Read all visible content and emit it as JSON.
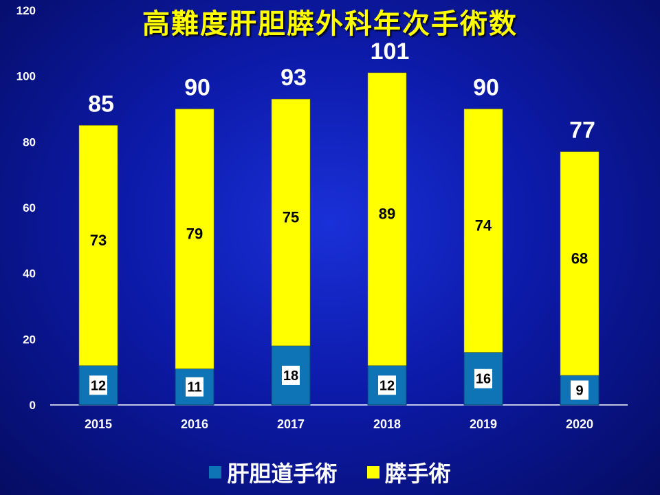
{
  "title": "高難度肝胆膵外科年次手術数",
  "colors": {
    "yellow": "#ffff00",
    "blue": "#0f74b5",
    "axis": "#ffffff"
  },
  "chart_data": {
    "type": "bar",
    "stacked": true,
    "categories": [
      "2015",
      "2016",
      "2017",
      "2018",
      "2019",
      "2020"
    ],
    "series": [
      {
        "name": "肝胆道手術",
        "values": [
          12,
          11,
          18,
          12,
          16,
          9
        ],
        "color": "#0f74b5"
      },
      {
        "name": "膵手術",
        "values": [
          73,
          79,
          75,
          89,
          74,
          68
        ],
        "color": "#ffff00"
      }
    ],
    "totals": [
      85,
      90,
      93,
      101,
      90,
      77
    ],
    "ylim": [
      0,
      120
    ],
    "yticks": [
      0,
      20,
      40,
      60,
      80,
      100,
      120
    ],
    "legend_position": "bottom",
    "grid": false
  },
  "legend": [
    {
      "label": "肝胆道手術",
      "color": "#0f74b5"
    },
    {
      "label": "膵手術",
      "color": "#ffff00"
    }
  ]
}
